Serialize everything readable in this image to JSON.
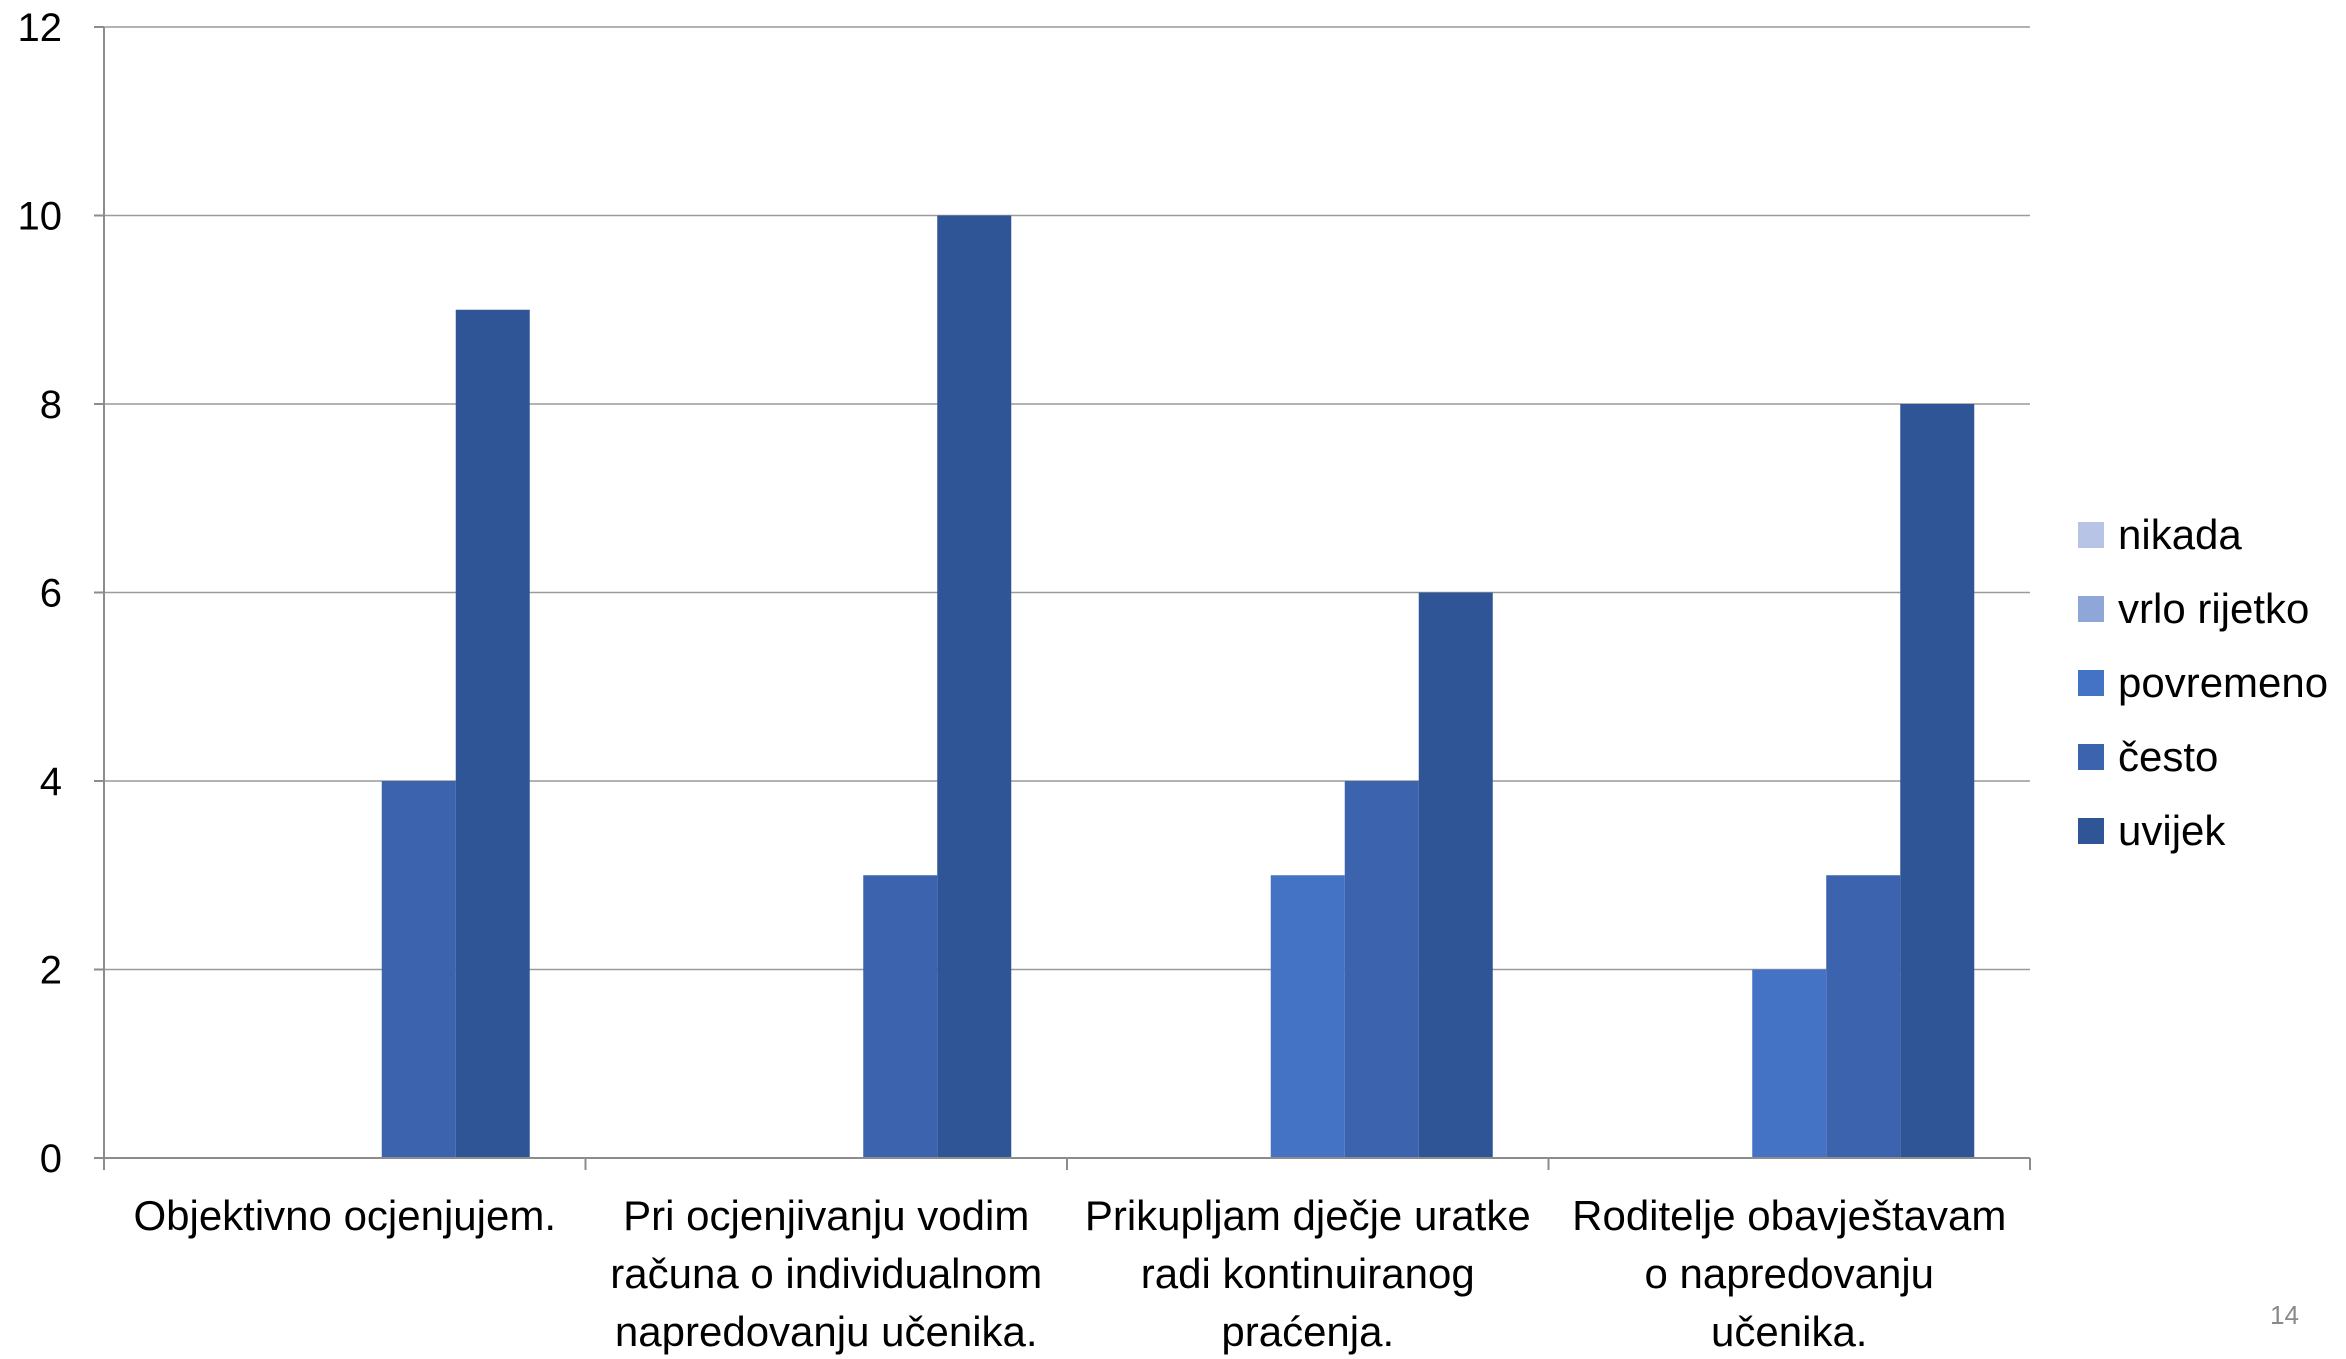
{
  "chart_data": {
    "type": "bar",
    "categories": [
      [
        "Objektivno ocjenjujem."
      ],
      [
        "Pri ocjenjivanju vodim",
        "računa o individualnom",
        "napredovanju učenika."
      ],
      [
        "Prikupljam dječje uratke",
        "radi kontinuiranog",
        "praćenja."
      ],
      [
        "Roditelje obavještavam",
        "o napredovanju",
        "učenika."
      ]
    ],
    "series": [
      {
        "name": "nikada",
        "color": "#b7c4e6",
        "values": [
          0,
          0,
          0,
          0
        ]
      },
      {
        "name": "vrlo rijetko",
        "color": "#8fa6d8",
        "values": [
          0,
          0,
          0,
          0
        ]
      },
      {
        "name": "povremeno",
        "color": "#4472c4",
        "values": [
          0,
          0,
          3,
          2
        ]
      },
      {
        "name": "često",
        "color": "#3c64ae",
        "values": [
          4,
          3,
          4,
          3
        ]
      },
      {
        "name": "uvijek",
        "color": "#2f5597",
        "values": [
          9,
          10,
          6,
          8
        ]
      }
    ],
    "ylim": [
      0,
      12
    ],
    "yticks": [
      0,
      2,
      4,
      6,
      8,
      10,
      12
    ],
    "grid": true,
    "legend_position": "right"
  },
  "page_number": "14"
}
